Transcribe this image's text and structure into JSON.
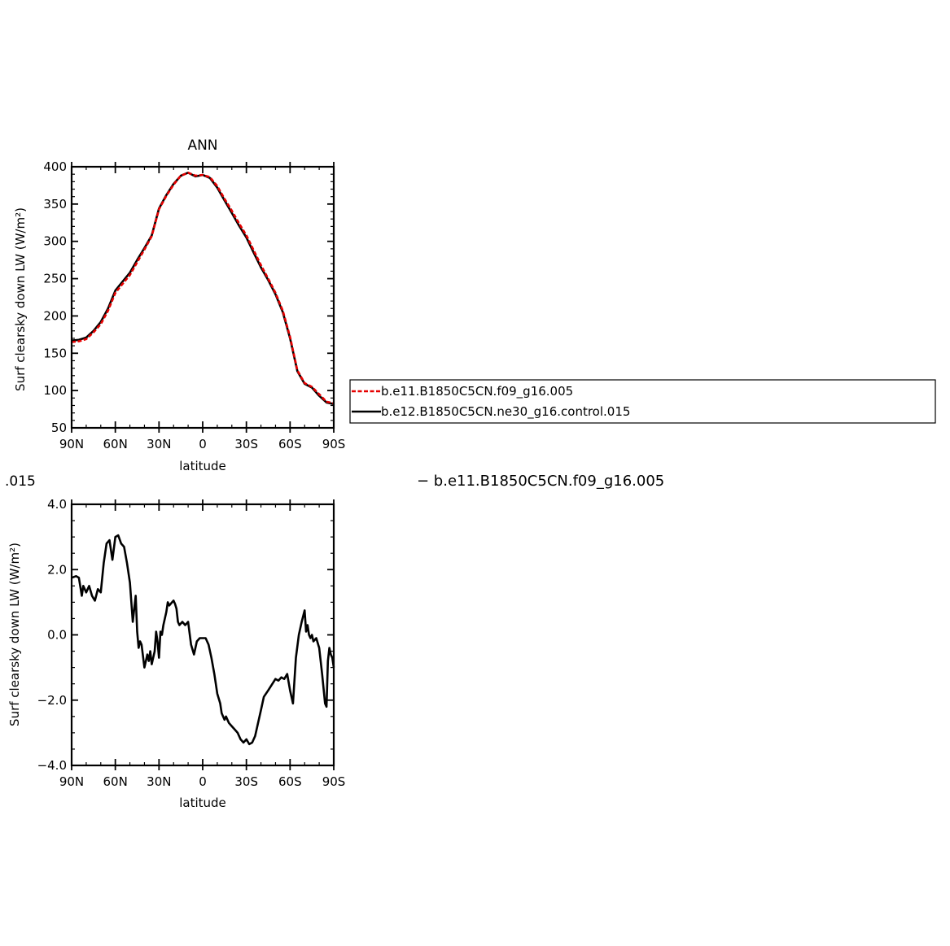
{
  "page": {
    "fragment_left": ".015",
    "fragment_right": "−  b.e11.B1850C5CN.f09_g16.005"
  },
  "legend": {
    "entries": [
      {
        "label": "b.e11.B1850C5CN.f09_g16.005",
        "color": "#e60000",
        "dash": true
      },
      {
        "label": "b.e12.B1850C5CN.ne30_g16.control.015",
        "color": "#000000",
        "dash": false
      }
    ]
  },
  "chart_data": [
    {
      "type": "line",
      "title": "ANN",
      "xlabel": "latitude",
      "ylabel": "Surf clearsky down LW (W/m²)",
      "xlim": [
        90,
        -90
      ],
      "ylim": [
        50,
        400
      ],
      "x_ticks": [
        90,
        60,
        30,
        0,
        -30,
        -60,
        -90
      ],
      "x_tick_labels": [
        "90N",
        "60N",
        "30N",
        "0",
        "30S",
        "60S",
        "90S"
      ],
      "y_ticks": [
        50,
        100,
        150,
        200,
        250,
        300,
        350,
        400
      ],
      "y_tick_labels": [
        "50",
        "100",
        "150",
        "200",
        "250",
        "300",
        "350",
        "400"
      ],
      "series": [
        {
          "name": "b.e12.B1850C5CN.ne30_g16.control.015",
          "color": "#000000",
          "dashed": false,
          "x": [
            90,
            85,
            80,
            75,
            70,
            65,
            60,
            55,
            50,
            45,
            40,
            35,
            30,
            25,
            20,
            15,
            10,
            5,
            0,
            -5,
            -10,
            -15,
            -20,
            -25,
            -30,
            -35,
            -40,
            -45,
            -50,
            -55,
            -60,
            -65,
            -70,
            -75,
            -80,
            -85,
            -90
          ],
          "y": [
            167,
            168,
            171,
            180,
            192,
            210,
            234,
            246,
            258,
            275,
            291,
            308,
            344,
            362,
            377,
            388,
            392,
            387,
            389,
            385,
            372,
            355,
            338,
            321,
            305,
            285,
            265,
            248,
            229,
            205,
            170,
            126,
            109,
            104,
            93,
            84,
            82
          ]
        },
        {
          "name": "b.e11.B1850C5CN.f09_g16.005",
          "color": "#e60000",
          "dashed": true,
          "x": [
            90,
            85,
            80,
            75,
            70,
            65,
            60,
            55,
            50,
            45,
            40,
            35,
            30,
            25,
            20,
            15,
            10,
            5,
            0,
            -5,
            -10,
            -15,
            -20,
            -25,
            -30,
            -35,
            -40,
            -45,
            -50,
            -55,
            -60,
            -65,
            -70,
            -75,
            -80,
            -85,
            -90
          ],
          "y": [
            165,
            166,
            169,
            178,
            189,
            207,
            231,
            243,
            255,
            272,
            289,
            307,
            343,
            361,
            376,
            388,
            392,
            388,
            389,
            386,
            374,
            357,
            341,
            324,
            308,
            288,
            268,
            250,
            231,
            207,
            172,
            127,
            110,
            105,
            95,
            85,
            83
          ]
        }
      ]
    },
    {
      "type": "line",
      "title": "",
      "xlabel": "latitude",
      "ylabel": "Surf clearsky down LW (W/m²)",
      "xlim": [
        90,
        -90
      ],
      "ylim": [
        -4.0,
        4.0
      ],
      "x_ticks": [
        90,
        60,
        30,
        0,
        -30,
        -60,
        -90
      ],
      "x_tick_labels": [
        "90N",
        "60N",
        "30N",
        "0",
        "30S",
        "60S",
        "90S"
      ],
      "y_ticks": [
        -4.0,
        -2.0,
        0.0,
        2.0,
        4.0
      ],
      "y_tick_labels": [
        "−4.0",
        "−2.0",
        "0.0",
        "2.0",
        "4.0"
      ],
      "series": [
        {
          "name": "",
          "color": "#000000",
          "dashed": false,
          "x": [
            90,
            87,
            85,
            83,
            82,
            80,
            78,
            76,
            74,
            72,
            70,
            68,
            66,
            64,
            62,
            60,
            58,
            56,
            54,
            52,
            50,
            48,
            46,
            45,
            44,
            43,
            42,
            40,
            38,
            37,
            36,
            35,
            34,
            33,
            32,
            31,
            30,
            29,
            28,
            27,
            25,
            24,
            23,
            21,
            20,
            19,
            18,
            17,
            16,
            14,
            12,
            10,
            8,
            6,
            4,
            2,
            0,
            -2,
            -4,
            -6,
            -8,
            -10,
            -12,
            -13,
            -14,
            -15,
            -16,
            -18,
            -20,
            -22,
            -24,
            -26,
            -28,
            -30,
            -32,
            -34,
            -36,
            -38,
            -40,
            -42,
            -45,
            -50,
            -52,
            -54,
            -56,
            -58,
            -60,
            -62,
            -64,
            -66,
            -68,
            -70,
            -71,
            -72,
            -73,
            -74,
            -75,
            -76,
            -78,
            -80,
            -82,
            -84,
            -85,
            -86,
            -87,
            -88,
            -89,
            -90
          ],
          "y": [
            1.75,
            1.8,
            1.75,
            1.2,
            1.5,
            1.3,
            1.5,
            1.2,
            1.05,
            1.4,
            1.3,
            2.2,
            2.8,
            2.9,
            2.3,
            3.0,
            3.05,
            2.8,
            2.7,
            2.2,
            1.6,
            0.4,
            1.2,
            0.1,
            -0.4,
            -0.2,
            -0.3,
            -1.0,
            -0.6,
            -0.8,
            -0.5,
            -0.9,
            -0.7,
            -0.5,
            0.1,
            -0.2,
            -0.7,
            0.1,
            0.0,
            0.3,
            0.7,
            1.0,
            0.9,
            1.0,
            1.05,
            0.95,
            0.8,
            0.4,
            0.3,
            0.4,
            0.3,
            0.4,
            -0.3,
            -0.6,
            -0.2,
            -0.1,
            -0.1,
            -0.1,
            -0.3,
            -0.7,
            -1.2,
            -1.8,
            -2.1,
            -2.4,
            -2.5,
            -2.6,
            -2.5,
            -2.7,
            -2.8,
            -2.9,
            -3.0,
            -3.2,
            -3.3,
            -3.2,
            -3.35,
            -3.3,
            -3.1,
            -2.7,
            -2.3,
            -1.9,
            -1.7,
            -1.35,
            -1.4,
            -1.3,
            -1.35,
            -1.2,
            -1.7,
            -2.1,
            -0.7,
            0.0,
            0.4,
            0.75,
            0.1,
            0.3,
            0.0,
            -0.1,
            0.0,
            -0.2,
            -0.1,
            -0.4,
            -1.2,
            -2.1,
            -2.2,
            -0.8,
            -0.4,
            -0.6,
            -0.7,
            -1.0
          ]
        }
      ]
    }
  ]
}
